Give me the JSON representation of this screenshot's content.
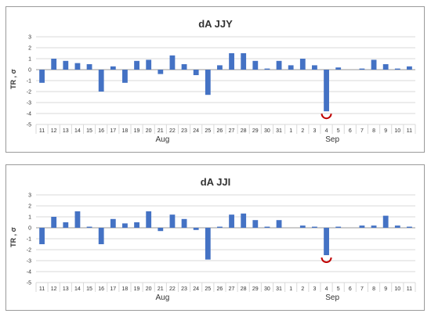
{
  "chart_data": [
    {
      "type": "bar",
      "title": "dA JJY",
      "xlabel": "",
      "ylabel": "TR , σ",
      "ylim": [
        -5,
        3
      ],
      "yticks": [
        3,
        2,
        1,
        0,
        -1,
        -2,
        -3,
        -4,
        -5
      ],
      "grid": true,
      "categories": [
        "11",
        "12",
        "13",
        "14",
        "15",
        "16",
        "17",
        "18",
        "19",
        "20",
        "21",
        "22",
        "23",
        "24",
        "25",
        "26",
        "27",
        "28",
        "29",
        "30",
        "31",
        "1",
        "2",
        "3",
        "4",
        "5",
        "6",
        "7",
        "8",
        "9",
        "10",
        "11"
      ],
      "months": [
        "Aug",
        "Sep"
      ],
      "values": [
        -1.2,
        1.0,
        0.8,
        0.6,
        0.5,
        -2.0,
        0.3,
        -1.2,
        0.8,
        0.9,
        -0.4,
        1.3,
        0.5,
        -0.5,
        -2.3,
        0.4,
        1.5,
        1.5,
        0.8,
        0.1,
        0.8,
        0.4,
        1.0,
        0.4,
        -3.8,
        0.2,
        0.0,
        0.1,
        0.9,
        0.5,
        0.1,
        0.3
      ],
      "bar_color": "#4472c4",
      "marker_color": "#c00000",
      "marked_index": 24
    },
    {
      "type": "bar",
      "title": "dA JJI",
      "xlabel": "",
      "ylabel": "TR , σ",
      "ylim": [
        -5,
        3
      ],
      "yticks": [
        3,
        2,
        1,
        0,
        -1,
        -2,
        -3,
        -4,
        -5
      ],
      "grid": true,
      "categories": [
        "11",
        "12",
        "13",
        "14",
        "15",
        "16",
        "17",
        "18",
        "19",
        "20",
        "21",
        "22",
        "23",
        "24",
        "25",
        "26",
        "27",
        "28",
        "29",
        "30",
        "31",
        "1",
        "2",
        "3",
        "4",
        "5",
        "6",
        "7",
        "8",
        "9",
        "10",
        "11"
      ],
      "months": [
        "Aug",
        "Sep"
      ],
      "values": [
        -1.5,
        1.0,
        0.5,
        1.5,
        0.1,
        -1.5,
        0.8,
        0.4,
        0.5,
        1.5,
        -0.3,
        1.2,
        0.8,
        -0.2,
        -2.9,
        0.1,
        1.2,
        1.3,
        0.7,
        0.1,
        0.7,
        0.0,
        0.2,
        0.1,
        -2.5,
        0.1,
        0.0,
        0.2,
        0.2,
        1.1,
        0.2,
        0.1
      ],
      "bar_color": "#4472c4",
      "marker_color": "#c00000",
      "marked_index": 24
    }
  ]
}
